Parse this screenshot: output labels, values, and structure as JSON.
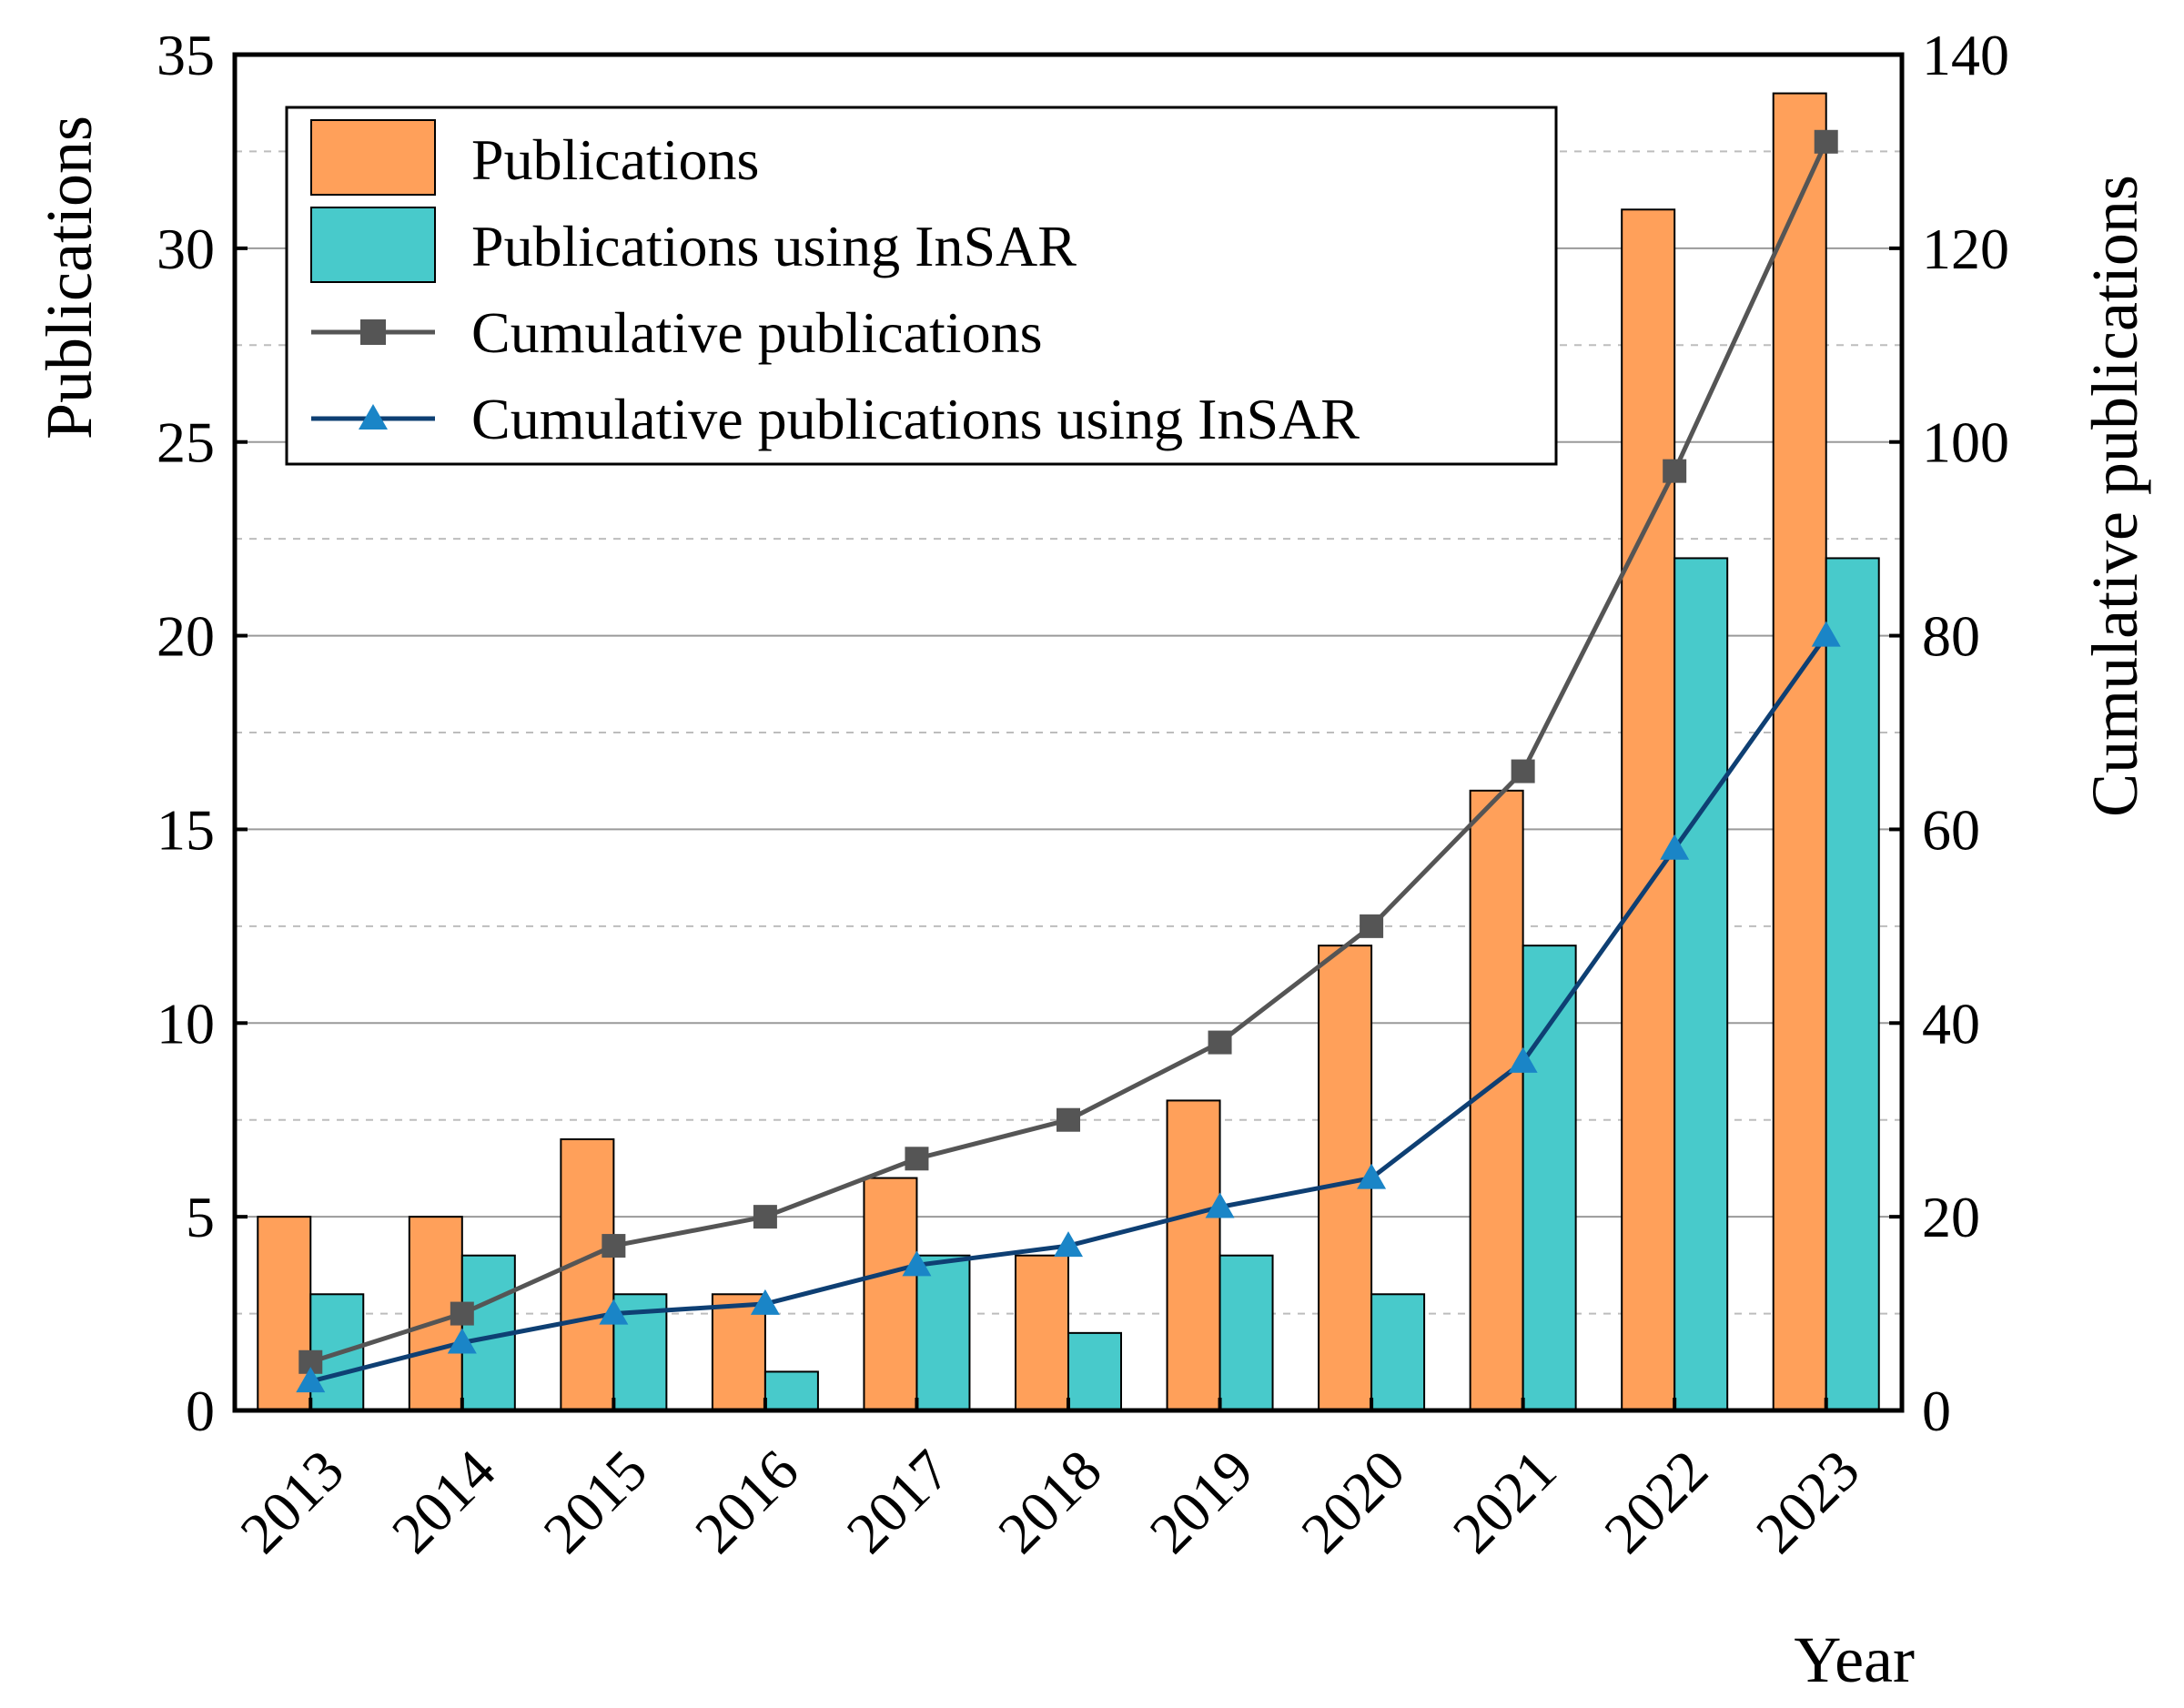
{
  "chart_data": {
    "type": "bar",
    "categories": [
      "2013",
      "2014",
      "2015",
      "2016",
      "2017",
      "2018",
      "2019",
      "2020",
      "2021",
      "2022",
      "2023"
    ],
    "series": [
      {
        "name": "Publications",
        "kind": "bar",
        "axis": "left",
        "color": "#FFA05A",
        "values": [
          5,
          5,
          7,
          3,
          6,
          4,
          8,
          12,
          16,
          31,
          34
        ]
      },
      {
        "name": "Publications using InSAR",
        "kind": "bar",
        "axis": "left",
        "color": "#48CACB",
        "values": [
          3,
          4,
          3,
          1,
          4,
          2,
          4,
          3,
          12,
          22,
          22
        ]
      },
      {
        "name": "Cumulative publications",
        "kind": "line",
        "axis": "right",
        "color": "#555555",
        "marker": "square",
        "values": [
          5,
          10,
          17,
          20,
          26,
          30,
          38,
          50,
          66,
          97,
          131
        ]
      },
      {
        "name": "Cumulative publications using InSAR",
        "kind": "line",
        "axis": "right",
        "color": "#0E3F73",
        "marker_color": "#1A85C7",
        "marker": "triangle",
        "values": [
          3,
          7,
          10,
          11,
          15,
          17,
          21,
          24,
          36,
          58,
          80
        ]
      }
    ],
    "xlabel": "Year",
    "ylabel": "Publications",
    "ylabel_right": "Cumulative publications",
    "ylim": [
      0,
      35
    ],
    "ylim_right": [
      0,
      140
    ],
    "yticks": [
      "0",
      "5",
      "10",
      "15",
      "20",
      "25",
      "30",
      "35"
    ],
    "yticks_right": [
      "0",
      "20",
      "40",
      "60",
      "80",
      "100",
      "120",
      "140"
    ],
    "grid": true,
    "legend_position": "top-left"
  }
}
